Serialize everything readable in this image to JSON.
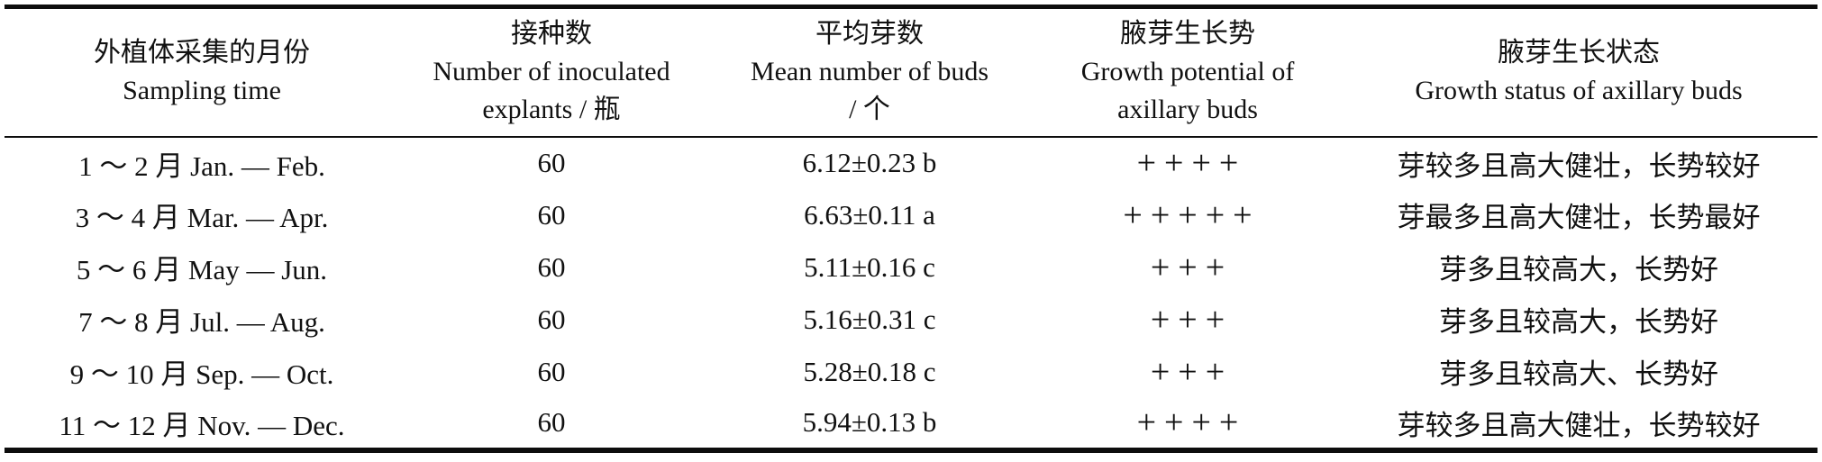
{
  "table": {
    "title_semantic": "Effect of sampling time on axillary bud induction",
    "columns": [
      {
        "id": "sampling-time",
        "lines": [
          "外植体采集的月份",
          "Sampling time"
        ]
      },
      {
        "id": "inoculated-count",
        "lines": [
          "接种数",
          "Number of inoculated",
          "explants / 瓶"
        ]
      },
      {
        "id": "mean-buds",
        "lines": [
          "平均芽数",
          "Mean number of buds",
          "/ 个"
        ]
      },
      {
        "id": "growth-potential",
        "lines": [
          "腋芽生长势",
          "Growth potential of",
          "axillary buds"
        ]
      },
      {
        "id": "growth-status",
        "lines": [
          "腋芽生长状态",
          "Growth status of axillary buds"
        ]
      }
    ],
    "rows": [
      {
        "sampling_time": "1 ～ 2 月 Jan. — Feb.",
        "inoculated": "60",
        "mean_buds": "6.12±0.23 b",
        "potential": "++++",
        "status": "芽较多且高大健壮，长势较好"
      },
      {
        "sampling_time": "3 ～ 4 月 Mar. — Apr.",
        "inoculated": "60",
        "mean_buds": "6.63±0.11 a",
        "potential": "+++++",
        "status": "芽最多且高大健壮，长势最好"
      },
      {
        "sampling_time": "5 ～ 6 月 May — Jun.",
        "inoculated": "60",
        "mean_buds": "5.11±0.16 c",
        "potential": "+++",
        "status": "芽多且较高大，长势好"
      },
      {
        "sampling_time": "7 ～ 8 月 Jul. — Aug.",
        "inoculated": "60",
        "mean_buds": "5.16±0.31 c",
        "potential": "+++",
        "status": "芽多且较高大，长势好"
      },
      {
        "sampling_time": "9 ～ 10 月 Sep. — Oct.",
        "inoculated": "60",
        "mean_buds": "5.28±0.18 c",
        "potential": "+++",
        "status": "芽多且较高大、长势好"
      },
      {
        "sampling_time": "11 ～ 12 月 Nov. — Dec.",
        "inoculated": "60",
        "mean_buds": "5.94±0.13 b",
        "potential": "++++",
        "status": "芽较多且高大健壮，长势较好"
      }
    ]
  },
  "colors": {
    "text": "#111111",
    "rule_line": "#0d0d0d",
    "background": "#ffffff"
  }
}
